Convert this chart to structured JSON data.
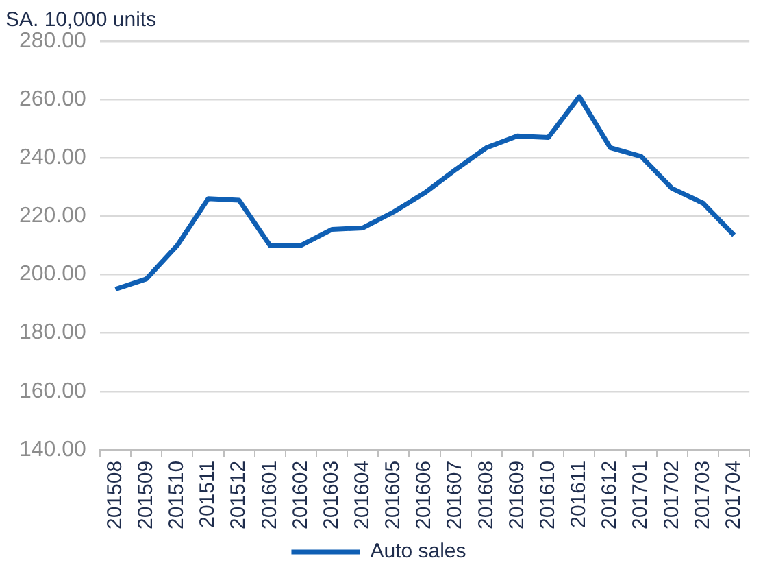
{
  "chart_data": {
    "type": "line",
    "title": "SA. 10,000 units",
    "categories": [
      "201508",
      "201509",
      "201510",
      "201511",
      "201512",
      "201601",
      "201602",
      "201603",
      "201604",
      "201605",
      "201606",
      "201607",
      "201608",
      "201609",
      "201610",
      "201611",
      "201612",
      "201701",
      "201702",
      "201703",
      "201704"
    ],
    "series": [
      {
        "name": "Auto sales",
        "color": "#0f5fb4",
        "values": [
          195,
          198.5,
          210,
          226,
          225.5,
          210,
          210,
          215.5,
          216,
          221.5,
          228,
          236,
          243.5,
          247.5,
          247,
          261,
          243.5,
          240.5,
          229.5,
          224.5,
          213.5
        ]
      }
    ],
    "ylim": [
      140,
      280
    ],
    "yticks": [
      {
        "value": 140,
        "label": "140.00"
      },
      {
        "value": 160,
        "label": "160.00"
      },
      {
        "value": 180,
        "label": "180.00"
      },
      {
        "value": 200,
        "label": "200.00"
      },
      {
        "value": 220,
        "label": "220.00"
      },
      {
        "value": 240,
        "label": "240.00"
      },
      {
        "value": 260,
        "label": "260.00"
      },
      {
        "value": 280,
        "label": "280.00"
      }
    ],
    "grid": "y",
    "legend": "bottom",
    "marker": "none",
    "line_style": "solid"
  }
}
